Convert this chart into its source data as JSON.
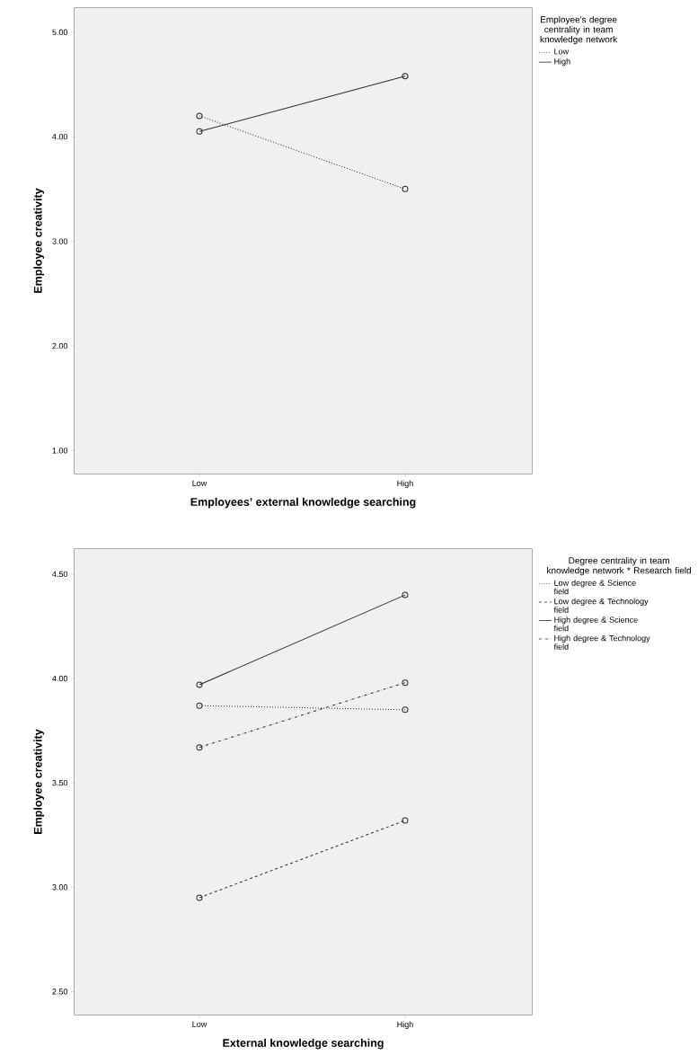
{
  "chart_data": [
    {
      "type": "line",
      "categories": [
        "Low",
        "High"
      ],
      "xlabel": "Employees’ external knowledge searching",
      "ylabel": "Employee creativity",
      "legend_title": "Employee's degree centrality in team knowledge network",
      "legend": "top right",
      "marker": "circle",
      "grid": false,
      "ylim": [
        0.78,
        5.23
      ],
      "yticks": [
        {
          "value": 1,
          "label": "1.00"
        },
        {
          "value": 2,
          "label": "2.00"
        },
        {
          "value": 3,
          "label": "3.00"
        },
        {
          "value": 4,
          "label": "4.00"
        },
        {
          "value": 5,
          "label": "5.00"
        }
      ],
      "series": [
        {
          "name": "Low",
          "color": "#2b2b2b",
          "line_style": "dotted",
          "values": [
            4.2,
            3.5
          ]
        },
        {
          "name": "High",
          "color": "#2b2b2b",
          "line_style": "solid",
          "values": [
            4.05,
            4.58
          ]
        }
      ]
    },
    {
      "type": "line",
      "categories": [
        "Low",
        "High"
      ],
      "xlabel": "External knowledge searching",
      "ylabel": "Employee creativity",
      "legend_title": "Degree centrality in team knowledge network * Research field",
      "legend": "top right",
      "marker": "circle",
      "grid": false,
      "ylim": [
        2.39,
        4.62
      ],
      "yticks": [
        {
          "value": 2.5,
          "label": "2.50"
        },
        {
          "value": 3,
          "label": "3.00"
        },
        {
          "value": 3.5,
          "label": "3.50"
        },
        {
          "value": 4,
          "label": "4.00"
        },
        {
          "value": 4.5,
          "label": "4.50"
        }
      ],
      "series": [
        {
          "name": "Low degree & Science field",
          "color": "#2b2b2b",
          "line_style": "dotted",
          "values": [
            3.87,
            3.85
          ]
        },
        {
          "name": "Low degree & Technology field",
          "color": "#2b2b2b",
          "line_style": "dashed",
          "values": [
            2.95,
            3.32
          ]
        },
        {
          "name": "High degree & Science field",
          "color": "#2b2b2b",
          "line_style": "solid",
          "values": [
            3.97,
            4.4
          ]
        },
        {
          "name": "High degree & Technology field",
          "color": "#2b2b2b",
          "line_style": "dashdotted",
          "values": [
            3.67,
            3.98
          ]
        }
      ]
    }
  ]
}
